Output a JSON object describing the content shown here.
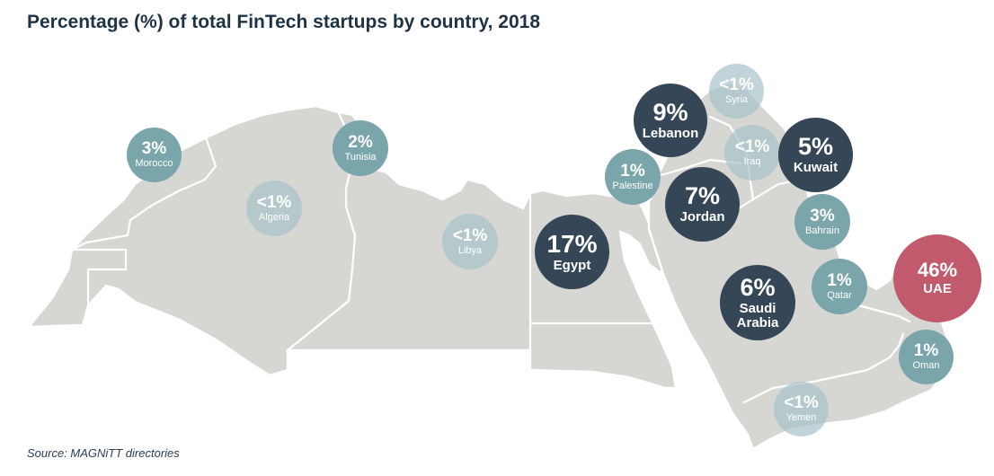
{
  "title": "Percentage (%) of total FinTech startups by country, 2018",
  "source": "Source: MAGNiTT directories",
  "colors": {
    "dark": "#354656",
    "teal": "#7aa5ab",
    "light": "#a7c4ca",
    "highlight": "#c15a6c",
    "land": "#d6d6d2"
  },
  "chart_data": {
    "type": "bubble-map",
    "title": "Percentage (%) of total FinTech startups by country, 2018",
    "unit": "%",
    "points": [
      {
        "country": "UAE",
        "label": "46%",
        "value": 46,
        "tier": "highlight"
      },
      {
        "country": "Egypt",
        "label": "17%",
        "value": 17,
        "tier": "dark"
      },
      {
        "country": "Lebanon",
        "label": "9%",
        "value": 9,
        "tier": "dark"
      },
      {
        "country": "Jordan",
        "label": "7%",
        "value": 7,
        "tier": "dark"
      },
      {
        "country": "Saudi Arabia",
        "label": "6%",
        "value": 6,
        "tier": "dark"
      },
      {
        "country": "Kuwait",
        "label": "5%",
        "value": 5,
        "tier": "dark"
      },
      {
        "country": "Morocco",
        "label": "3%",
        "value": 3,
        "tier": "teal"
      },
      {
        "country": "Bahrain",
        "label": "3%",
        "value": 3,
        "tier": "teal"
      },
      {
        "country": "Tunisia",
        "label": "2%",
        "value": 2,
        "tier": "teal"
      },
      {
        "country": "Palestine",
        "label": "1%",
        "value": 1,
        "tier": "teal"
      },
      {
        "country": "Qatar",
        "label": "1%",
        "value": 1,
        "tier": "teal"
      },
      {
        "country": "Oman",
        "label": "1%",
        "value": 1,
        "tier": "teal"
      },
      {
        "country": "Algeria",
        "label": "<1%",
        "value": 0.5,
        "tier": "light"
      },
      {
        "country": "Libya",
        "label": "<1%",
        "value": 0.5,
        "tier": "light"
      },
      {
        "country": "Syria",
        "label": "<1%",
        "value": 0.5,
        "tier": "light"
      },
      {
        "country": "Iraq",
        "label": "<1%",
        "value": 0.5,
        "tier": "light"
      },
      {
        "country": "Yemen",
        "label": "<1%",
        "value": 0.5,
        "tier": "light"
      }
    ]
  }
}
